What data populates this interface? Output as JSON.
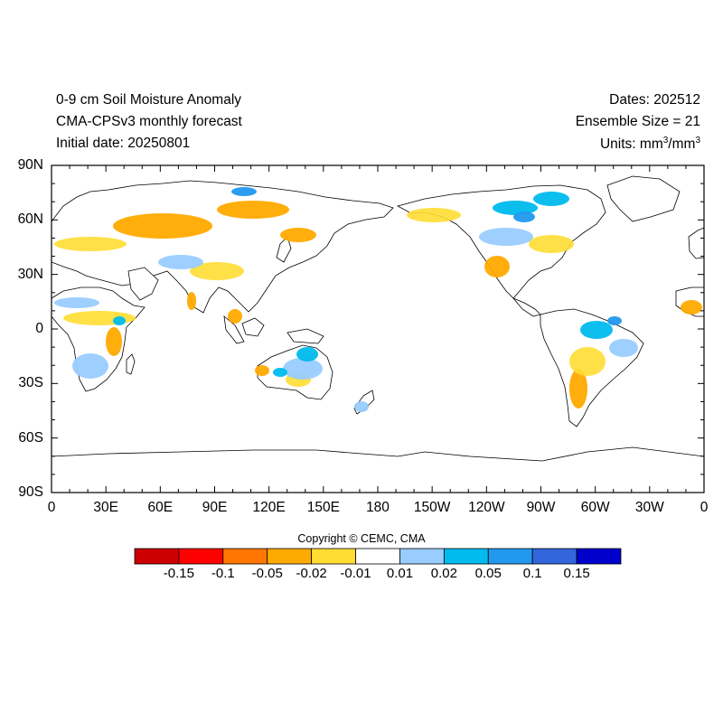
{
  "header": {
    "title": "0-9 cm Soil Moisture Anomaly",
    "model": "CMA-CPSv3 monthly forecast",
    "initial_date": "Initial date: 20250801",
    "dates": "Dates: 202512",
    "ensemble": "Ensemble Size = 21",
    "units_prefix": "Units: mm",
    "units_mid": "/mm",
    "units_exp": "3"
  },
  "axes": {
    "lat_labels": [
      "90N",
      "60N",
      "30N",
      "0",
      "30S",
      "60S",
      "90S"
    ],
    "lon_labels": [
      "0",
      "30E",
      "60E",
      "90E",
      "120E",
      "150E",
      "180",
      "150W",
      "120W",
      "90W",
      "60W",
      "30W",
      "0"
    ]
  },
  "copyright": "Copyright © CEMC, CMA",
  "colorbar": {
    "colors": [
      "#cc0000",
      "#ff0000",
      "#ff7700",
      "#ffaa00",
      "#ffdd33",
      "#ffffff",
      "#99ccff",
      "#00bbee",
      "#2299ee",
      "#3366dd",
      "#0000cc"
    ],
    "labels": [
      "-0.15",
      "-0.1",
      "-0.05",
      "-0.02",
      "-0.01",
      "0.01",
      "0.02",
      "0.05",
      "0.1",
      "0.15"
    ]
  },
  "colors": {
    "dry": "#ffaa00",
    "slightly_dry": "#ffdd33",
    "slightly_wet": "#99ccff",
    "wet": "#00bbee",
    "very_wet": "#2299ee"
  }
}
